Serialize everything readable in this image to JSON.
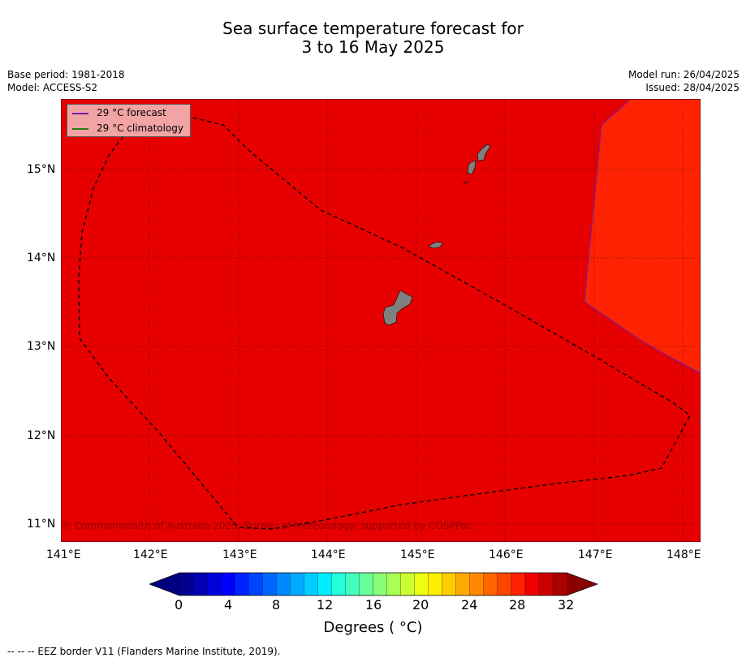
{
  "title": {
    "line1": "Sea surface temperature forecast for",
    "line2": "3 to 16 May 2025"
  },
  "meta": {
    "base_period": "Base period: 1981-2018",
    "model": "Model: ACCESS-S2",
    "model_run": "Model run: 26/04/2025",
    "issued": "Issued: 28/04/2025"
  },
  "legend": {
    "forecast": {
      "label": "29 °C  forecast",
      "color": "#6a1fb0"
    },
    "climatology": {
      "label": "29 °C  climatology",
      "color": "#2a7a10"
    }
  },
  "copyright": "© Commonwealth of Australia 2025, Bureau of Meteorology, supported by COSPPac",
  "map": {
    "background_color": "#e60000",
    "warm_region_color": "#ff2200",
    "land_color": "#808080",
    "lon_range": [
      141,
      148.2
    ],
    "lat_range": [
      10.8,
      15.8
    ],
    "lon_ticks": [
      "141°E",
      "142°E",
      "143°E",
      "144°E",
      "145°E",
      "146°E",
      "147°E",
      "148°E"
    ],
    "lat_ticks": [
      "15°N",
      "14°N",
      "13°N",
      "12°N",
      "11°N"
    ]
  },
  "colorbar": {
    "tick_labels": [
      "0",
      "4",
      "8",
      "12",
      "16",
      "20",
      "24",
      "28",
      "32"
    ],
    "label": "Degrees ( °C)",
    "colors": [
      "#00008b",
      "#0000b4",
      "#0000dc",
      "#0000ff",
      "#0022ff",
      "#0044ff",
      "#0066ff",
      "#0088ff",
      "#00aaff",
      "#00ccff",
      "#00eeff",
      "#22ffdd",
      "#44ffbb",
      "#66ff99",
      "#88ff77",
      "#aaff55",
      "#ccff33",
      "#eeff11",
      "#ffee00",
      "#ffcc00",
      "#ffaa00",
      "#ff8800",
      "#ff6600",
      "#ff4400",
      "#ff2200",
      "#ee0000",
      "#cc0000",
      "#aa0000"
    ],
    "under_color": "#00007f",
    "over_color": "#8b0000"
  },
  "footer": "--  --  -- EEZ border V11 (Flanders Marine Institute, 2019)."
}
